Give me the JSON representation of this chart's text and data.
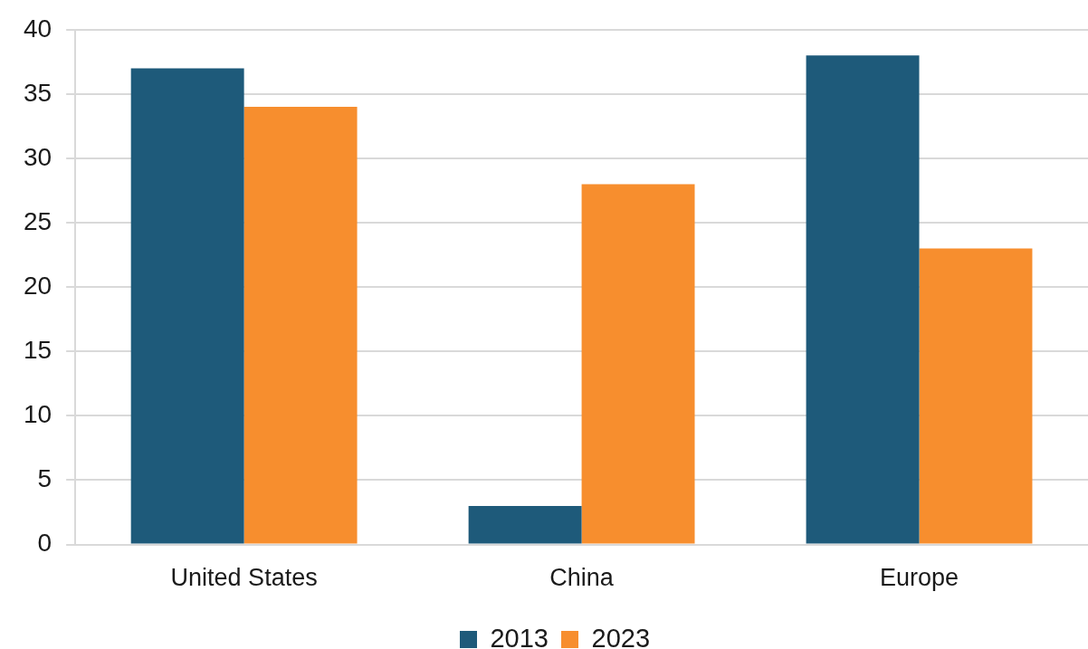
{
  "chart_data": {
    "type": "bar",
    "categories": [
      "United States",
      "China",
      "Europe"
    ],
    "series": [
      {
        "name": "2013",
        "color": "#1e5a7a",
        "values": [
          37,
          3,
          38
        ]
      },
      {
        "name": "2023",
        "color": "#f78e2e",
        "values": [
          34,
          28,
          23
        ]
      }
    ],
    "ylim": [
      0,
      40
    ],
    "yticks": [
      0,
      5,
      10,
      15,
      20,
      25,
      30,
      35,
      40
    ],
    "grid": "y",
    "legend": "bottom"
  }
}
